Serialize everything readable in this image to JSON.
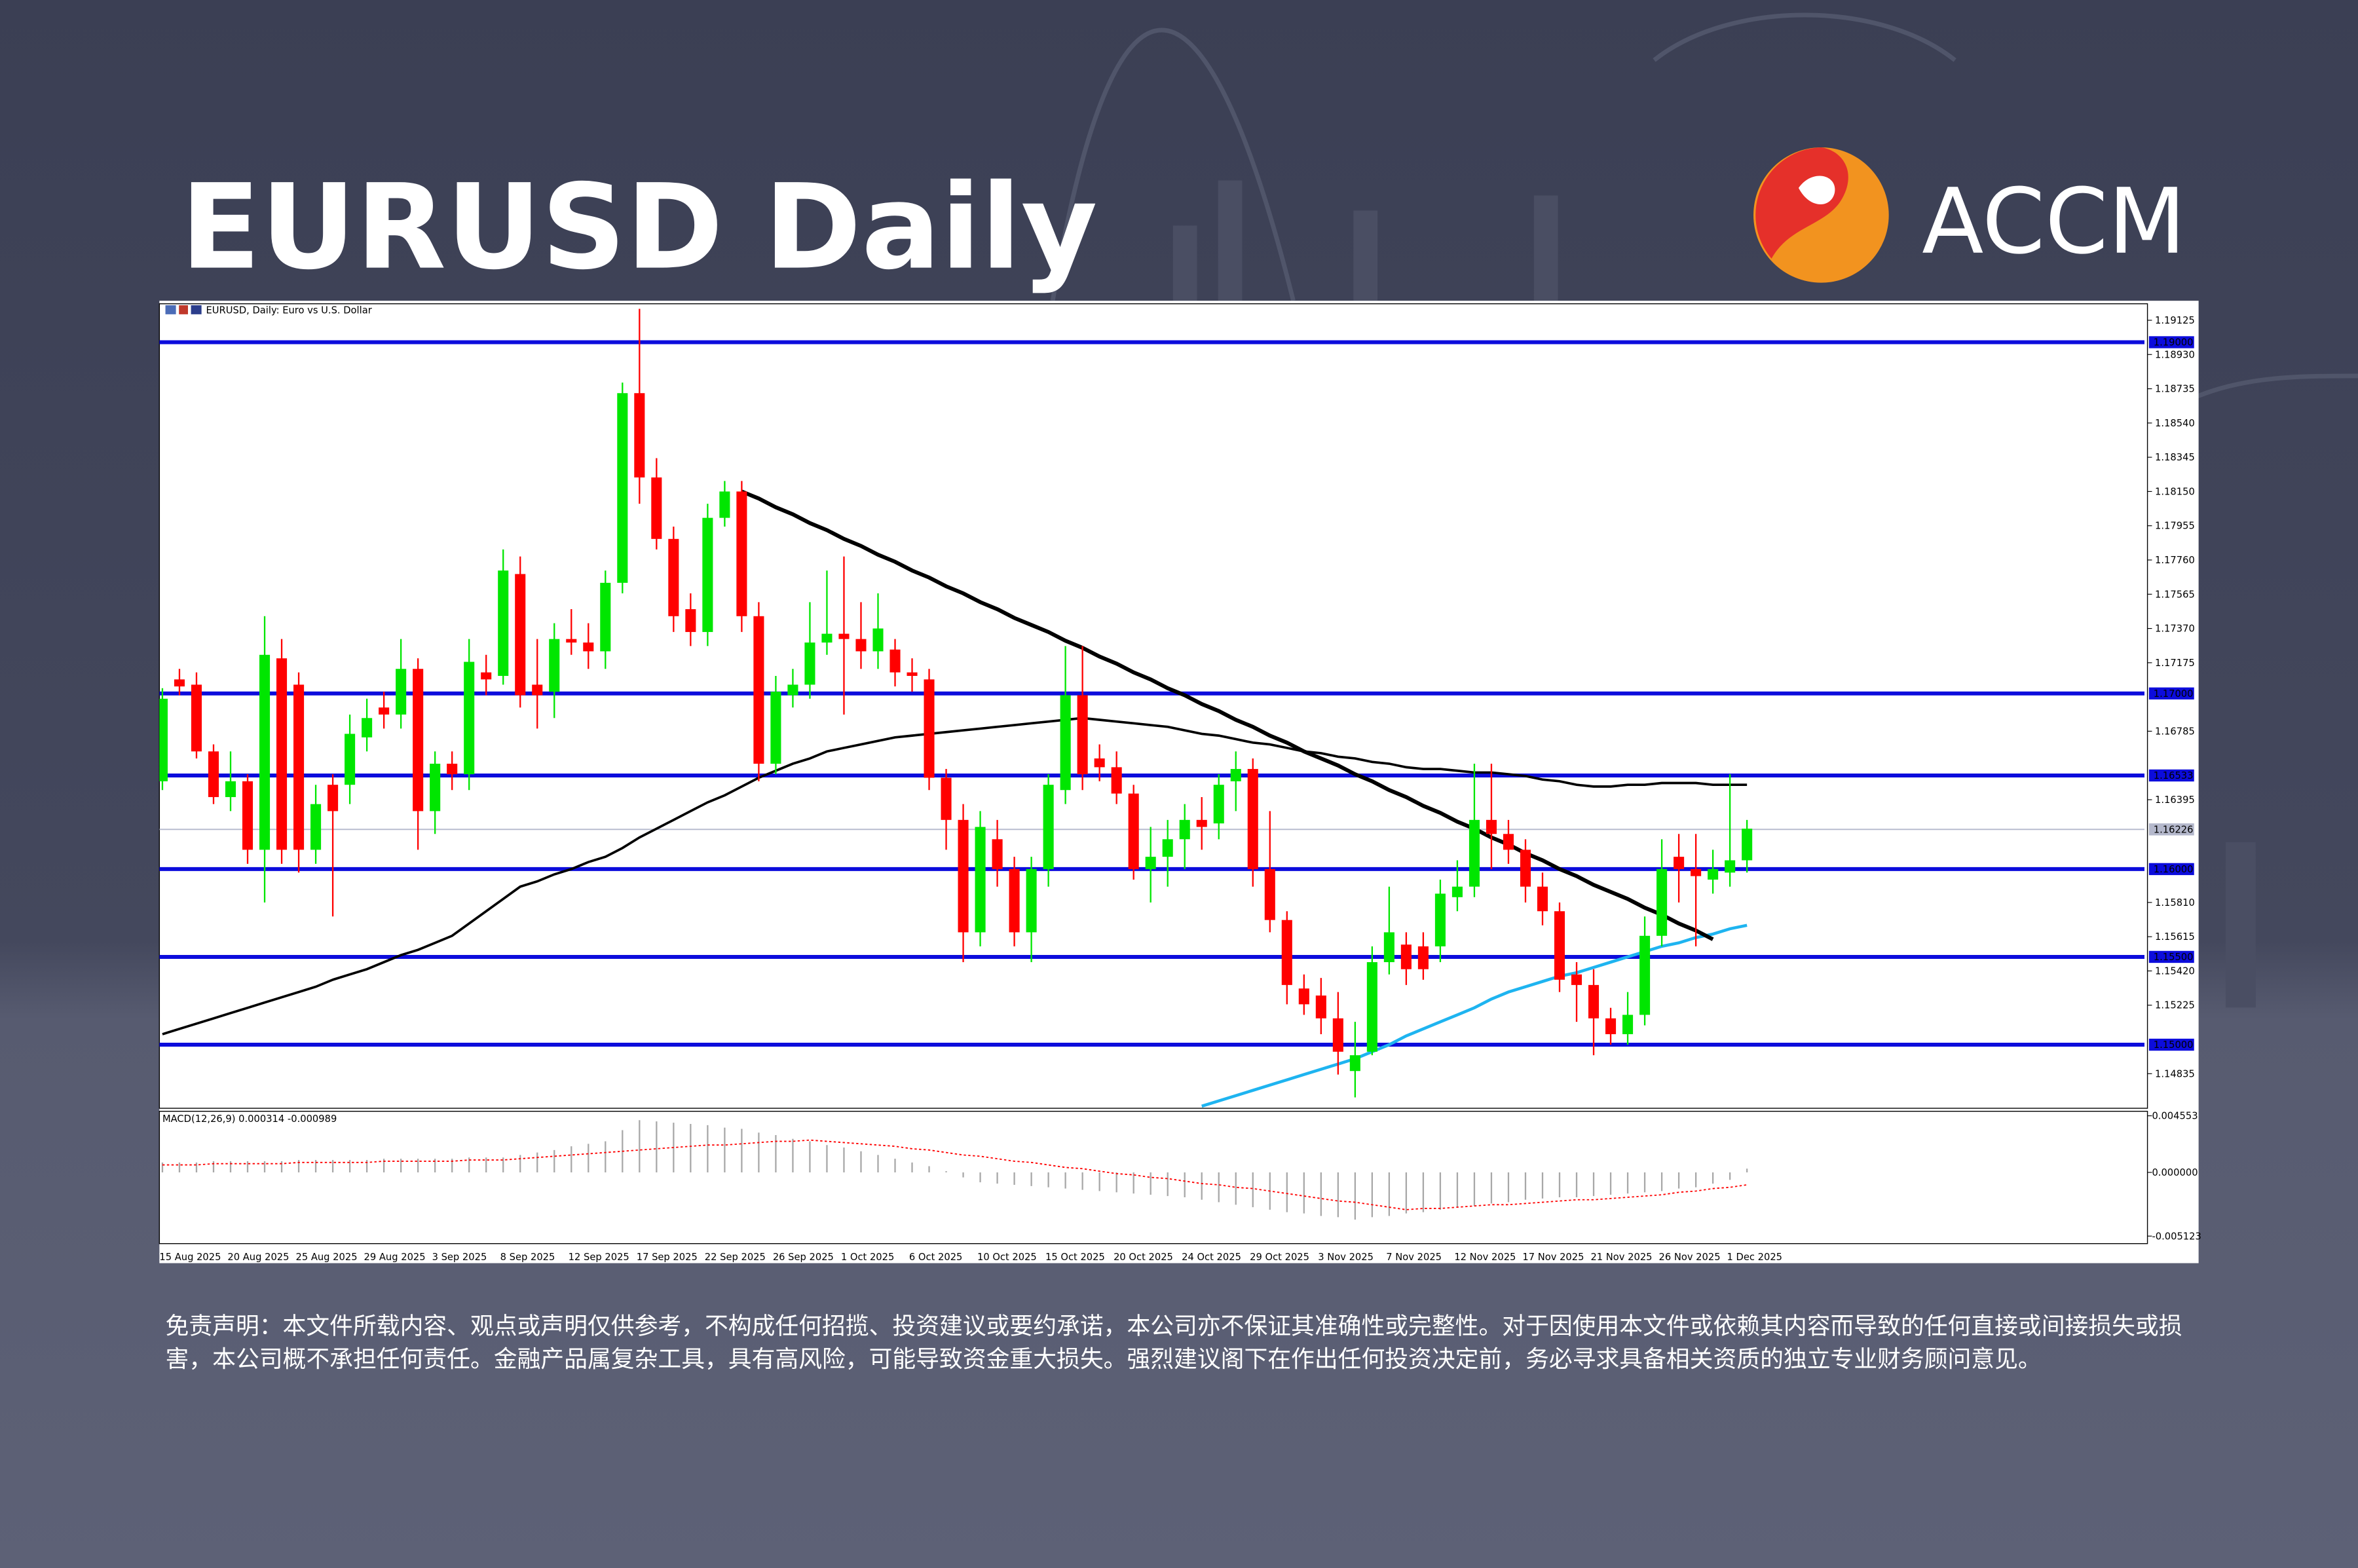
{
  "header": {
    "title": "EURUSD Daily",
    "brand": "ACCM"
  },
  "chart_data": {
    "type": "candlestick",
    "title": "EURUSD, Daily: Euro vs U.S. Dollar",
    "categories": [
      "15 Aug 2025",
      null,
      null,
      null,
      "20 Aug 2025",
      null,
      null,
      null,
      "25 Aug 2025",
      null,
      null,
      null,
      "29 Aug 2025",
      null,
      null,
      null,
      "3 Sep 2025",
      null,
      null,
      null,
      "8 Sep 2025",
      null,
      null,
      null,
      "12 Sep 2025",
      null,
      null,
      null,
      "17 Sep 2025",
      null,
      null,
      null,
      "22 Sep 2025",
      null,
      null,
      null,
      "26 Sep 2025",
      null,
      null,
      null,
      "1 Oct 2025",
      null,
      null,
      null,
      "6 Oct 2025",
      null,
      null,
      null,
      "10 Oct 2025",
      null,
      null,
      null,
      "15 Oct 2025",
      null,
      null,
      null,
      "20 Oct 2025",
      null,
      null,
      null,
      "24 Oct 2025",
      null,
      null,
      null,
      "29 Oct 2025",
      null,
      null,
      null,
      "3 Nov 2025",
      null,
      null,
      null,
      "7 Nov 2025",
      null,
      null,
      null,
      "12 Nov 2025",
      null,
      null,
      null,
      "17 Nov 2025",
      null,
      null,
      null,
      "21 Nov 2025",
      null,
      null,
      null,
      "26 Nov 2025",
      null,
      null,
      null,
      "1 Dec 2025",
      null
    ],
    "open": [
      1.165,
      1.1708,
      1.1705,
      1.1667,
      1.1641,
      1.165,
      1.1611,
      1.172,
      1.1705,
      1.1611,
      1.1648,
      1.1648,
      1.1675,
      1.1692,
      1.1688,
      1.1714,
      1.1633,
      1.166,
      1.1654,
      1.1712,
      1.171,
      1.1768,
      1.1705,
      1.1701,
      1.1731,
      1.1729,
      1.1724,
      1.1763,
      1.1871,
      1.1823,
      1.1788,
      1.1748,
      1.1735,
      1.18,
      1.1815,
      1.1744,
      1.166,
      1.1699,
      1.1705,
      1.1729,
      1.1734,
      1.1731,
      1.1724,
      1.1725,
      1.1712,
      1.1708,
      1.1652,
      1.1628,
      1.1564,
      1.1617,
      1.16,
      1.1564,
      1.16,
      1.1645,
      1.1699,
      1.1663,
      1.1658,
      1.1643,
      1.16,
      1.1607,
      1.1617,
      1.1628,
      1.1626,
      1.165,
      1.1657,
      1.16,
      1.1571,
      1.1532,
      1.1528,
      1.1515,
      1.1485,
      1.1496,
      1.1547,
      1.1557,
      1.1556,
      1.1556,
      1.1584,
      1.159,
      1.1628,
      1.162,
      1.1611,
      1.159,
      1.1576,
      1.154,
      1.1534,
      1.1515,
      1.1506,
      1.1517,
      1.1562,
      1.1607,
      1.16,
      1.1594,
      1.1598,
      1.1605
    ],
    "high": [
      1.1703,
      1.1714,
      1.1712,
      1.1671,
      1.1667,
      1.1654,
      1.1744,
      1.1731,
      1.1712,
      1.1648,
      1.1654,
      1.1688,
      1.1697,
      1.1701,
      1.1731,
      1.172,
      1.1667,
      1.1667,
      1.1731,
      1.1722,
      1.1782,
      1.1778,
      1.1731,
      1.174,
      1.1748,
      1.174,
      1.177,
      1.1877,
      1.1919,
      1.1834,
      1.1795,
      1.1757,
      1.1808,
      1.1821,
      1.1821,
      1.1752,
      1.171,
      1.1714,
      1.1752,
      1.177,
      1.1778,
      1.1752,
      1.1757,
      1.1731,
      1.172,
      1.1714,
      1.1657,
      1.1637,
      1.1633,
      1.1628,
      1.1607,
      1.1607,
      1.1654,
      1.1727,
      1.1727,
      1.1671,
      1.1667,
      1.1648,
      1.1624,
      1.1628,
      1.1637,
      1.1641,
      1.1654,
      1.1667,
      1.1663,
      1.1633,
      1.1576,
      1.154,
      1.1538,
      1.153,
      1.1513,
      1.1556,
      1.159,
      1.1564,
      1.1564,
      1.1594,
      1.1605,
      1.166,
      1.166,
      1.1628,
      1.1617,
      1.1598,
      1.1581,
      1.1547,
      1.1543,
      1.1521,
      1.153,
      1.1573,
      1.1617,
      1.162,
      1.162,
      1.1611,
      1.1654,
      1.1628
    ],
    "low": [
      1.1645,
      1.1699,
      1.1663,
      1.1637,
      1.1633,
      1.1603,
      1.1581,
      1.1603,
      1.1598,
      1.1603,
      1.1573,
      1.1637,
      1.1667,
      1.168,
      1.168,
      1.1611,
      1.162,
      1.1645,
      1.1645,
      1.1699,
      1.1705,
      1.1692,
      1.168,
      1.1686,
      1.1722,
      1.1714,
      1.1714,
      1.1757,
      1.1808,
      1.1782,
      1.1735,
      1.1727,
      1.1727,
      1.1795,
      1.1735,
      1.165,
      1.1654,
      1.1692,
      1.1697,
      1.1722,
      1.1688,
      1.1714,
      1.1714,
      1.1704,
      1.1701,
      1.1645,
      1.1611,
      1.1547,
      1.1556,
      1.159,
      1.1556,
      1.1547,
      1.159,
      1.1637,
      1.1645,
      1.165,
      1.1637,
      1.1594,
      1.1581,
      1.159,
      1.16,
      1.1611,
      1.1617,
      1.1633,
      1.159,
      1.1564,
      1.1523,
      1.1517,
      1.1506,
      1.1483,
      1.147,
      1.1494,
      1.154,
      1.1534,
      1.1537,
      1.1547,
      1.1576,
      1.1584,
      1.16,
      1.1603,
      1.1581,
      1.1568,
      1.153,
      1.1513,
      1.1494,
      1.15,
      1.15,
      1.1511,
      1.1556,
      1.1581,
      1.1556,
      1.1586,
      1.159,
      1.1598
    ],
    "close": [
      1.1697,
      1.1704,
      1.1667,
      1.1641,
      1.165,
      1.1611,
      1.1722,
      1.1611,
      1.1611,
      1.1637,
      1.1633,
      1.1677,
      1.1686,
      1.1688,
      1.1714,
      1.1633,
      1.166,
      1.1654,
      1.1718,
      1.1708,
      1.177,
      1.1699,
      1.1699,
      1.1731,
      1.1729,
      1.1724,
      1.1763,
      1.1871,
      1.1823,
      1.1788,
      1.1744,
      1.1735,
      1.18,
      1.1815,
      1.1744,
      1.166,
      1.1701,
      1.1705,
      1.1729,
      1.1734,
      1.1731,
      1.1724,
      1.1737,
      1.1712,
      1.171,
      1.1652,
      1.1628,
      1.1564,
      1.1624,
      1.16,
      1.1564,
      1.16,
      1.1648,
      1.1699,
      1.1654,
      1.1658,
      1.1643,
      1.16,
      1.1607,
      1.1617,
      1.1628,
      1.1624,
      1.1648,
      1.1657,
      1.16,
      1.1571,
      1.1534,
      1.1523,
      1.1515,
      1.1496,
      1.1494,
      1.1547,
      1.1564,
      1.1543,
      1.1543,
      1.1586,
      1.159,
      1.1628,
      1.162,
      1.1611,
      1.159,
      1.1576,
      1.1537,
      1.1534,
      1.1515,
      1.1506,
      1.1517,
      1.1562,
      1.16,
      1.16,
      1.1596,
      1.16,
      1.1605,
      1.1623
    ],
    "up_color": "#00e600",
    "down_color": "#ff0000",
    "ylim": [
      1.14638,
      1.19219
    ],
    "yticks": [
      {
        "value": 1.19125,
        "label": "1.19125"
      },
      {
        "value": 1.1893,
        "label": "1.18930"
      },
      {
        "value": 1.18735,
        "label": "1.18735"
      },
      {
        "value": 1.1854,
        "label": "1.18540"
      },
      {
        "value": 1.18345,
        "label": "1.18345"
      },
      {
        "value": 1.1815,
        "label": "1.18150"
      },
      {
        "value": 1.17955,
        "label": "1.17955"
      },
      {
        "value": 1.1776,
        "label": "1.17760"
      },
      {
        "value": 1.17565,
        "label": "1.17565"
      },
      {
        "value": 1.1737,
        "label": "1.17370"
      },
      {
        "value": 1.17175,
        "label": "1.17175"
      },
      {
        "value": 1.16785,
        "label": "1.16785"
      },
      {
        "value": 1.16395,
        "label": "1.16395"
      },
      {
        "value": 1.1581,
        "label": "1.15810"
      },
      {
        "value": 1.15615,
        "label": "1.15615"
      },
      {
        "value": 1.1542,
        "label": "1.15420"
      },
      {
        "value": 1.15225,
        "label": "1.15225"
      },
      {
        "value": 1.14835,
        "label": "1.14835"
      }
    ],
    "levels": [
      {
        "value": 1.19,
        "label": "1.19000"
      },
      {
        "value": 1.17,
        "label": "1.17000"
      },
      {
        "value": 1.16533,
        "label": "1.16533"
      },
      {
        "value": 1.16,
        "label": "1.16000"
      },
      {
        "value": 1.155,
        "label": "1.15500"
      },
      {
        "value": 1.15,
        "label": "1.15000"
      }
    ],
    "level_color": "#0c0cdc",
    "last_price": {
      "value": 1.16226,
      "label": "1.16226"
    },
    "moving_averages": [
      {
        "color": "#000000",
        "values": [
          1.1506,
          1.1509,
          1.1512,
          1.1515,
          1.1518,
          1.1521,
          1.1524,
          1.1527,
          1.153,
          1.1533,
          1.1537,
          1.154,
          1.1543,
          1.1547,
          1.1551,
          1.1554,
          1.1558,
          1.1562,
          1.1569,
          1.1576,
          1.1583,
          1.159,
          1.1593,
          1.1597,
          1.16,
          1.1604,
          1.1607,
          1.1612,
          1.1618,
          1.1623,
          1.1628,
          1.1633,
          1.1638,
          1.1642,
          1.1647,
          1.1652,
          1.1656,
          1.166,
          1.1663,
          1.1667,
          1.1669,
          1.1671,
          1.1673,
          1.1675,
          1.1676,
          1.1677,
          1.1678,
          1.1679,
          1.168,
          1.1681,
          1.1682,
          1.1683,
          1.1684,
          1.1685,
          1.1686,
          1.1685,
          1.1684,
          1.1683,
          1.1682,
          1.1681,
          1.1679,
          1.1677,
          1.1676,
          1.1674,
          1.1672,
          1.1671,
          1.1669,
          1.1667,
          1.1666,
          1.1664,
          1.1663,
          1.1661,
          1.166,
          1.1658,
          1.1657,
          1.1657,
          1.1656,
          1.1655,
          1.1655,
          1.1654,
          1.1653,
          1.1651,
          1.165,
          1.1648,
          1.1647,
          1.1647,
          1.1648,
          1.1648,
          1.1649,
          1.1649,
          1.1649,
          1.1648,
          1.1648,
          1.1648
        ]
      },
      {
        "color": "#1eb4f0",
        "values": [
          null,
          null,
          null,
          null,
          null,
          null,
          null,
          null,
          null,
          null,
          null,
          null,
          null,
          null,
          null,
          null,
          null,
          null,
          null,
          null,
          null,
          null,
          null,
          null,
          null,
          null,
          null,
          null,
          null,
          null,
          null,
          null,
          null,
          null,
          null,
          null,
          null,
          null,
          null,
          null,
          null,
          null,
          null,
          null,
          null,
          null,
          null,
          null,
          null,
          null,
          null,
          null,
          null,
          null,
          null,
          null,
          null,
          null,
          null,
          null,
          null,
          1.1465,
          1.1468,
          1.1471,
          1.1474,
          1.1477,
          1.148,
          1.1483,
          1.1486,
          1.1489,
          1.1492,
          1.1496,
          1.15,
          1.1505,
          1.1509,
          1.1513,
          1.1517,
          1.1521,
          1.1526,
          1.153,
          1.1533,
          1.1536,
          1.1539,
          1.1541,
          1.1544,
          1.1547,
          1.155,
          1.1553,
          1.1556,
          1.1558,
          1.1561,
          1.1563,
          1.1566,
          1.1568
        ]
      }
    ],
    "trendline": {
      "color": "#000000",
      "values": [
        null,
        null,
        null,
        null,
        null,
        null,
        null,
        null,
        null,
        null,
        null,
        null,
        null,
        null,
        null,
        null,
        null,
        null,
        null,
        null,
        null,
        null,
        null,
        null,
        null,
        null,
        null,
        null,
        null,
        null,
        null,
        null,
        null,
        null,
        1.1815,
        1.1811,
        1.1806,
        1.1802,
        1.1797,
        1.1793,
        1.1788,
        1.1784,
        1.1779,
        1.1775,
        1.177,
        1.1766,
        1.1761,
        1.1757,
        1.1752,
        1.1748,
        1.1743,
        1.1739,
        1.1735,
        1.173,
        1.1726,
        1.1721,
        1.1717,
        1.1712,
        1.1708,
        1.1703,
        1.1699,
        1.1694,
        1.169,
        1.1685,
        1.1681,
        1.1676,
        1.1672,
        1.1667,
        1.1663,
        1.1659,
        1.1654,
        1.165,
        1.1645,
        1.1641,
        1.1636,
        1.1632,
        1.1627,
        1.1623,
        1.1618,
        1.1614,
        1.1609,
        1.1605,
        1.16,
        1.1596,
        1.1591,
        1.1587,
        1.1583,
        1.1578,
        1.1574,
        1.1569,
        1.1565,
        1.156,
        null,
        null
      ]
    },
    "macd": {
      "label": "MACD(12,26,9) 0.000314 -0.000989",
      "ylim": [
        -0.005123,
        0.004553
      ],
      "yticks": [
        {
          "value": 0.004553,
          "label": "0.004553"
        },
        {
          "value": 0,
          "label": "0.000000"
        },
        {
          "value": -0.005123,
          "label": "-0.005123"
        }
      ],
      "histogram_color": "#a8a8a8",
      "signal_color": "#ff0000",
      "histogram": [
        0.0008,
        0.0008,
        0.0008,
        0.0009,
        0.0009,
        0.0009,
        0.0009,
        0.0009,
        0.001,
        0.001,
        0.001,
        0.001,
        0.001,
        0.0011,
        0.0011,
        0.0011,
        0.0011,
        0.0011,
        0.0012,
        0.0012,
        0.0012,
        0.0014,
        0.0016,
        0.0018,
        0.0021,
        0.0023,
        0.0025,
        0.0034,
        0.0042,
        0.0041,
        0.004,
        0.0039,
        0.0038,
        0.0036,
        0.0035,
        0.0032,
        0.003,
        0.0027,
        0.0025,
        0.0022,
        0.002,
        0.0017,
        0.0014,
        0.0011,
        0.0008,
        0.0005,
        0.0001,
        -0.0004,
        -0.0008,
        -0.0009,
        -0.001,
        -0.0011,
        -0.0012,
        -0.0013,
        -0.0014,
        -0.0015,
        -0.0016,
        -0.0017,
        -0.0018,
        -0.0019,
        -0.002,
        -0.0022,
        -0.0024,
        -0.0026,
        -0.0028,
        -0.003,
        -0.0032,
        -0.0033,
        -0.0035,
        -0.0036,
        -0.0038,
        -0.0036,
        -0.0035,
        -0.0033,
        -0.0032,
        -0.003,
        -0.0028,
        -0.0027,
        -0.0025,
        -0.0024,
        -0.0022,
        -0.0021,
        -0.002,
        -0.002,
        -0.0019,
        -0.0018,
        -0.0017,
        -0.0016,
        -0.0015,
        -0.0013,
        -0.0012,
        -0.0009,
        -0.0006,
        0.0003
      ],
      "signal": [
        0.0006,
        0.0006,
        0.0006,
        0.0007,
        0.0007,
        0.0007,
        0.0007,
        0.0007,
        0.0008,
        0.0008,
        0.0008,
        0.0008,
        0.0008,
        0.0009,
        0.0009,
        0.0009,
        0.0009,
        0.0009,
        0.001,
        0.001,
        0.001,
        0.0011,
        0.0012,
        0.0013,
        0.0014,
        0.0015,
        0.0016,
        0.0017,
        0.0018,
        0.0019,
        0.002,
        0.0021,
        0.0022,
        0.0022,
        0.0023,
        0.0024,
        0.0025,
        0.0025,
        0.0026,
        0.0025,
        0.0024,
        0.0023,
        0.0022,
        0.0021,
        0.0019,
        0.0018,
        0.0016,
        0.0014,
        0.0013,
        0.0011,
        0.0009,
        0.0008,
        0.0006,
        0.0004,
        0.0003,
        0.0001,
        -0.0001,
        -0.0002,
        -0.0004,
        -0.0005,
        -0.0007,
        -0.0009,
        -0.001,
        -0.0012,
        -0.0013,
        -0.0015,
        -0.0017,
        -0.0019,
        -0.0021,
        -0.0023,
        -0.0024,
        -0.0026,
        -0.0028,
        -0.003,
        -0.0029,
        -0.0029,
        -0.0028,
        -0.0027,
        -0.0026,
        -0.0026,
        -0.0025,
        -0.0024,
        -0.0023,
        -0.0022,
        -0.0022,
        -0.0021,
        -0.002,
        -0.0019,
        -0.0018,
        -0.0016,
        -0.0015,
        -0.0013,
        -0.0012,
        -0.001
      ]
    }
  },
  "disclaimer": "免责声明：本文件所载内容、观点或声明仅供参考，不构成任何招揽、投资建议或要约承诺，本公司亦不保证其准确性或完整性。对于因使用本文件或依赖其内容而导致的任何直接或间接损失或损害，本公司概不承担任何责任。金融产品属复杂工具，具有高风险，可能导致资金重大损失。强烈建议阁下在作出任何投资决定前，务必寻求具备相关资质的独立专业财务顾问意见。"
}
